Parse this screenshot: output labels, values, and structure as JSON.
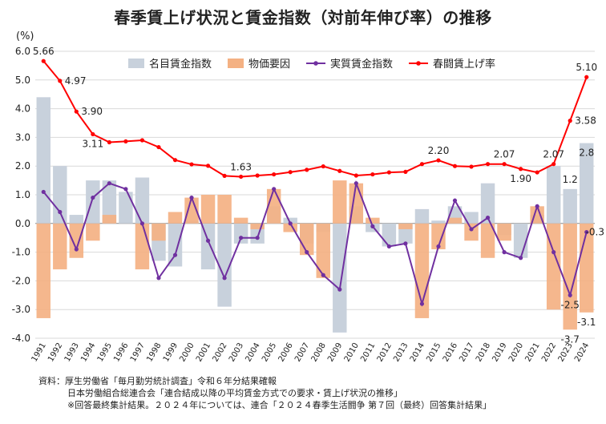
{
  "title": "春季賃上げ状況と賃金指数（対前年伸び率）の推移",
  "source": {
    "line1": "資料：厚生労働省「毎月勤労統計調査」令和６年分結果確報",
    "line2": "日本労働組合総連合会「連合結成以降の平均賃金方式での要求・賃上げ状況の推移」",
    "line3": "※回答最終集計結果。２０２４年については、連合「２０２４春季生活闘争 第７回（最終）回答集計結果」"
  },
  "chart_data": {
    "type": "bar",
    "unit": "(%)",
    "x": [
      "1991",
      "1992",
      "1993",
      "1994",
      "1995",
      "1996",
      "1997",
      "1998",
      "1999",
      "2000",
      "2001",
      "2002",
      "2003",
      "2004",
      "2005",
      "2006",
      "2007",
      "2008",
      "2009",
      "2010",
      "2011",
      "2012",
      "2013",
      "2014",
      "2015",
      "2016",
      "2017",
      "2018",
      "2019",
      "2020",
      "2021",
      "2022",
      "2023",
      "2024"
    ],
    "ylim": [
      -4.0,
      6.0
    ],
    "yticks": [
      "6.0",
      "5.0",
      "4.0",
      "3.0",
      "2.0",
      "1.0",
      "0.0",
      "-1.0",
      "-2.0",
      "-3.0",
      "-4.0"
    ],
    "grid": true,
    "legend_position": "top",
    "series": [
      {
        "name": "名目賃金指数",
        "kind": "bar",
        "color": "#c8d1dc",
        "values": [
          4.4,
          2.0,
          0.3,
          1.5,
          1.5,
          1.1,
          1.6,
          -1.3,
          -1.5,
          0.1,
          -1.6,
          -2.9,
          -0.7,
          -0.7,
          0.6,
          0.2,
          -0.7,
          -0.3,
          -3.8,
          0.6,
          -0.3,
          -0.8,
          -0.7,
          0.5,
          0.1,
          0.6,
          0.4,
          1.4,
          -0.4,
          -1.2,
          0.3,
          2.0,
          1.2,
          2.8
        ]
      },
      {
        "name": "物価要因",
        "kind": "bar",
        "color": "#f4b183",
        "values": [
          -3.3,
          -1.6,
          -1.2,
          -0.6,
          0.3,
          0.0,
          -1.6,
          -0.6,
          0.4,
          0.9,
          1.0,
          1.0,
          0.2,
          -0.2,
          1.2,
          -0.3,
          -1.1,
          -1.9,
          1.5,
          1.4,
          0.2,
          0.0,
          -0.2,
          -3.3,
          -0.9,
          0.2,
          -0.6,
          -1.2,
          -0.6,
          0.0,
          0.6,
          -3.0,
          -3.7,
          -3.1
        ]
      },
      {
        "name": "実質賃金指数",
        "kind": "line",
        "color": "#7030a0",
        "values": [
          1.1,
          0.4,
          -0.9,
          0.9,
          1.4,
          1.2,
          0.0,
          -1.9,
          -1.1,
          0.9,
          -0.6,
          -1.9,
          -0.5,
          -0.5,
          1.2,
          0.0,
          -1.0,
          -1.8,
          -2.3,
          1.4,
          -0.1,
          -0.8,
          -0.7,
          -2.8,
          -0.8,
          0.8,
          -0.2,
          0.2,
          -1.0,
          -1.2,
          0.6,
          -1.0,
          -2.5,
          -0.3
        ]
      },
      {
        "name": "春闘賃上げ率",
        "kind": "line",
        "color": "#ff0000",
        "values": [
          5.66,
          4.97,
          3.9,
          3.11,
          2.83,
          2.86,
          2.9,
          2.66,
          2.21,
          2.06,
          2.01,
          1.66,
          1.63,
          1.67,
          1.71,
          1.79,
          1.87,
          1.99,
          1.83,
          1.67,
          1.71,
          1.78,
          1.8,
          2.07,
          2.2,
          2.0,
          1.98,
          2.07,
          2.07,
          1.9,
          1.78,
          2.07,
          3.58,
          5.1
        ]
      }
    ],
    "annotations": [
      {
        "series": 3,
        "index": 0,
        "text": "5.66",
        "pos": "above"
      },
      {
        "series": 3,
        "index": 1,
        "text": "4.97",
        "pos": "right"
      },
      {
        "series": 3,
        "index": 2,
        "text": "3.90",
        "pos": "right"
      },
      {
        "series": 3,
        "index": 3,
        "text": "3.11",
        "pos": "below"
      },
      {
        "series": 3,
        "index": 12,
        "text": "1.63",
        "pos": "above"
      },
      {
        "series": 3,
        "index": 24,
        "text": "2.20",
        "pos": "above"
      },
      {
        "series": 3,
        "index": 28,
        "text": "2.07",
        "pos": "above"
      },
      {
        "series": 3,
        "index": 29,
        "text": "1.90",
        "pos": "below"
      },
      {
        "series": 3,
        "index": 31,
        "text": "2.07",
        "pos": "above"
      },
      {
        "series": 3,
        "index": 32,
        "text": "3.58",
        "pos": "right"
      },
      {
        "series": 3,
        "index": 33,
        "text": "5.10",
        "pos": "above"
      },
      {
        "series": 0,
        "index": 32,
        "text": "1.2",
        "pos": "above"
      },
      {
        "series": 0,
        "index": 33,
        "text": "2.8",
        "pos": "below"
      },
      {
        "series": 2,
        "index": 32,
        "text": "-2.5",
        "pos": "below"
      },
      {
        "series": 2,
        "index": 33,
        "text": "-0.3",
        "pos": "right"
      },
      {
        "series": 1,
        "index": 32,
        "text": "-3.7",
        "pos": "below"
      },
      {
        "series": 1,
        "index": 33,
        "text": "-3.1",
        "pos": "below"
      }
    ]
  }
}
